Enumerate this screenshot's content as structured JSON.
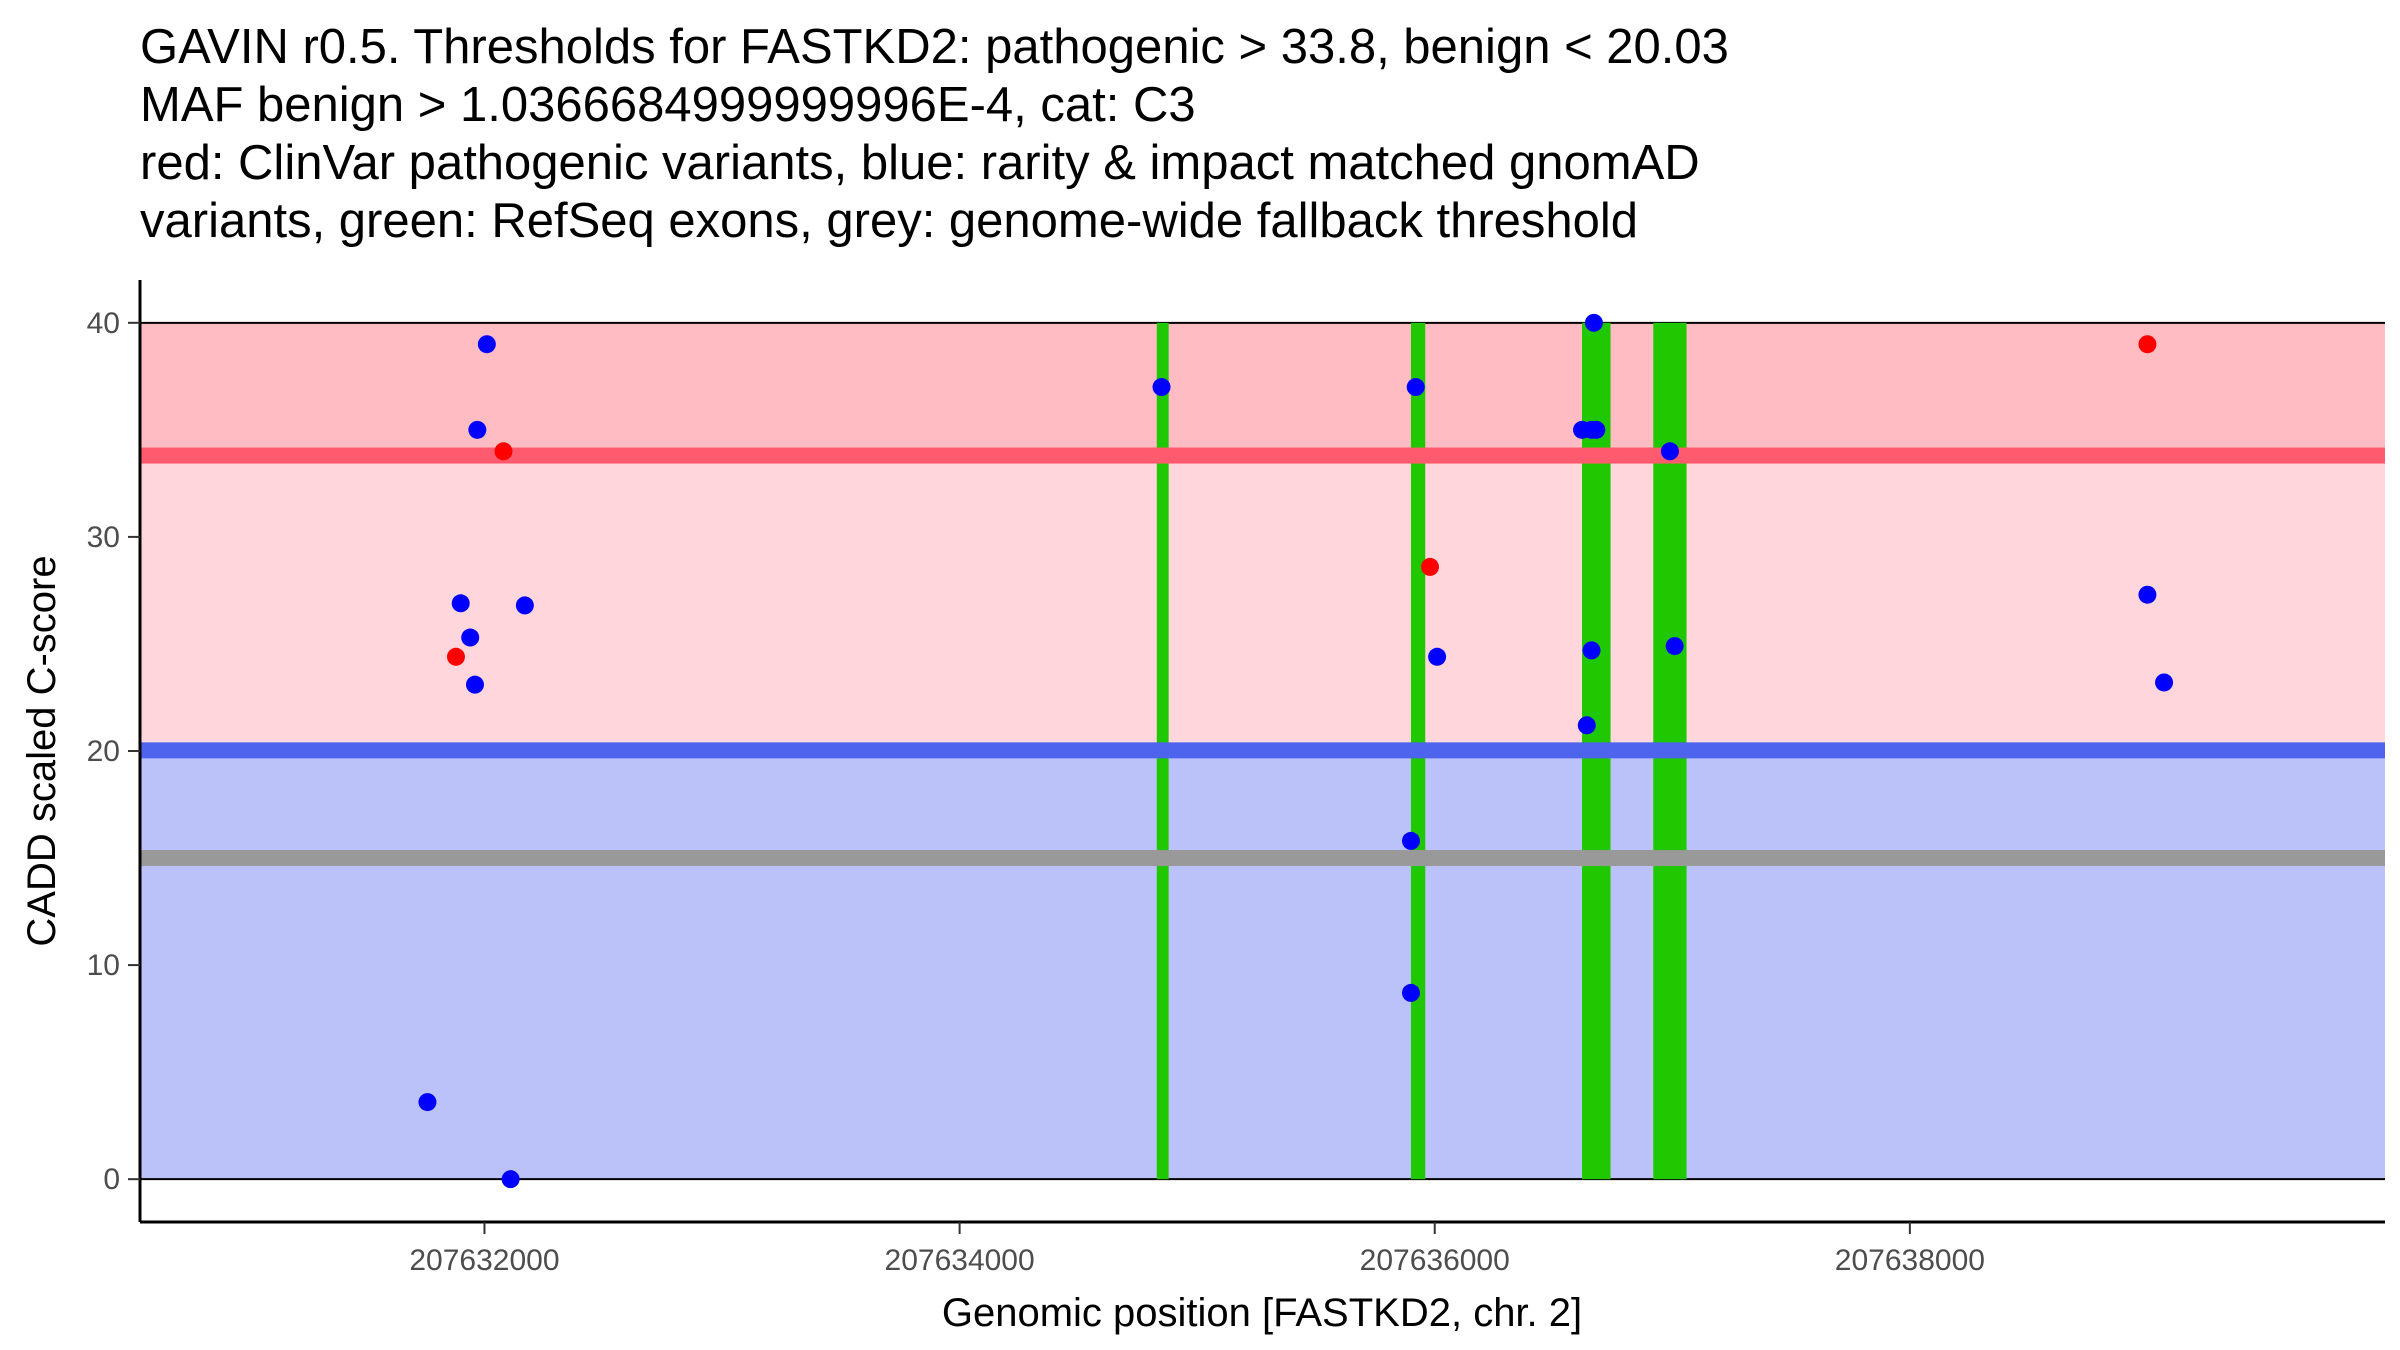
{
  "chart_data": {
    "type": "scatter",
    "title_lines": [
      "GAVIN r0.5. Thresholds for FASTKD2: pathogenic > 33.8, benign < 20.03",
      "MAF benign > 1.0366684999999996E-4, cat: C3",
      "red: ClinVar pathogenic variants, blue: rarity & impact matched gnomAD",
      "variants, green: RefSeq exons, grey: genome-wide fallback threshold"
    ],
    "xlabel": "Genomic position [FASTKD2, chr. 2]",
    "ylabel": "CADD scaled C-score",
    "xlim": [
      207630550,
      207640000
    ],
    "ylim": [
      -2,
      42
    ],
    "x_ticks": [
      207632000,
      207634000,
      207636000,
      207638000
    ],
    "x_tick_labels": [
      "207632000",
      "207634000",
      "207636000",
      "207638000"
    ],
    "y_ticks": [
      0,
      10,
      20,
      30,
      40
    ],
    "y_tick_labels": [
      "0",
      "10",
      "20",
      "30",
      "40"
    ],
    "thresholds": {
      "pathogenic": 33.8,
      "benign": 20.03,
      "fallback": 15
    },
    "bands": [
      {
        "name": "benign-region",
        "ymin": 0,
        "ymax": 20.03,
        "color": "#bbc2fa"
      },
      {
        "name": "intermediate-region",
        "ymin": 20.03,
        "ymax": 33.8,
        "color": "#ffd6dc"
      },
      {
        "name": "pathogenic-region",
        "ymin": 33.8,
        "ymax": 40,
        "color": "#ffbcc3"
      }
    ],
    "threshold_lines": [
      {
        "name": "pathogenic-threshold-line",
        "y": 33.8,
        "color": "#ff5a6e"
      },
      {
        "name": "benign-threshold-line",
        "y": 20.03,
        "color": "#4e63ee"
      },
      {
        "name": "fallback-threshold-line",
        "y": 15,
        "color": "#999999"
      }
    ],
    "exons": [
      {
        "start": 207634830,
        "end": 207634880
      },
      {
        "start": 207635900,
        "end": 207635960
      },
      {
        "start": 207636620,
        "end": 207636740
      },
      {
        "start": 207636920,
        "end": 207637060
      }
    ],
    "series": [
      {
        "name": "ClinVar pathogenic variants",
        "color": "#ff0000",
        "points": [
          {
            "x": 207632080,
            "y": 34
          },
          {
            "x": 207631880,
            "y": 24.4
          },
          {
            "x": 207635980,
            "y": 28.6
          },
          {
            "x": 207639000,
            "y": 39
          }
        ]
      },
      {
        "name": "rarity & impact matched gnomAD variants",
        "color": "#0000ff",
        "points": [
          {
            "x": 207632010,
            "y": 39
          },
          {
            "x": 207631970,
            "y": 35
          },
          {
            "x": 207631900,
            "y": 26.9
          },
          {
            "x": 207631940,
            "y": 25.3
          },
          {
            "x": 207631960,
            "y": 23.1
          },
          {
            "x": 207632170,
            "y": 26.8
          },
          {
            "x": 207631760,
            "y": 3.6
          },
          {
            "x": 207632110,
            "y": 0
          },
          {
            "x": 207634850,
            "y": 37
          },
          {
            "x": 207635920,
            "y": 37
          },
          {
            "x": 207636010,
            "y": 24.4
          },
          {
            "x": 207635900,
            "y": 15.8
          },
          {
            "x": 207635900,
            "y": 8.7
          },
          {
            "x": 207636670,
            "y": 40
          },
          {
            "x": 207636620,
            "y": 35
          },
          {
            "x": 207636660,
            "y": 35
          },
          {
            "x": 207636680,
            "y": 35
          },
          {
            "x": 207636660,
            "y": 24.7
          },
          {
            "x": 207636640,
            "y": 21.2
          },
          {
            "x": 207636990,
            "y": 34
          },
          {
            "x": 207637010,
            "y": 24.9
          },
          {
            "x": 207639000,
            "y": 27.3
          },
          {
            "x": 207639070,
            "y": 23.2
          }
        ]
      }
    ]
  }
}
